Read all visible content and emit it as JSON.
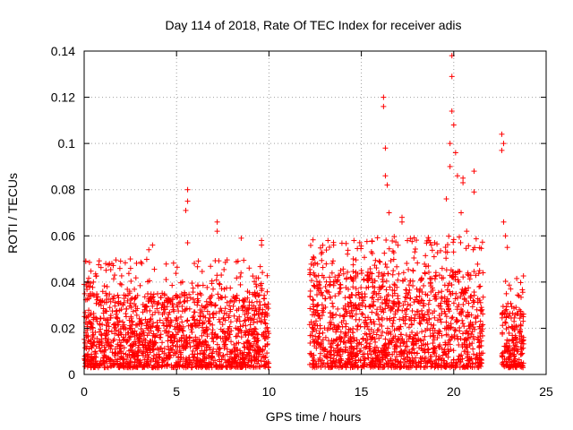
{
  "chart_data": {
    "type": "scatter",
    "title": "Day 114 of 2018, Rate Of TEC Index for receiver adis",
    "xlabel": "GPS time / hours",
    "ylabel": "ROTI / TECUs",
    "xlim": [
      0,
      25
    ],
    "ylim": [
      0,
      0.14
    ],
    "x_ticks": [
      0,
      5,
      10,
      15,
      20,
      25
    ],
    "x_tick_labels": [
      "0",
      "5",
      "10",
      "15",
      "20",
      "25"
    ],
    "y_ticks": [
      0,
      0.02,
      0.04,
      0.06,
      0.08,
      0.1,
      0.12,
      0.14
    ],
    "y_tick_labels": [
      "0",
      "0.02",
      "0.04",
      "0.06",
      "0.08",
      "0.1",
      "0.12",
      "0.14"
    ],
    "grid": true,
    "marker": "+",
    "color": "#ff0000",
    "series": [
      {
        "name": "ROTI",
        "bulk_segments": [
          {
            "x_range": [
              0.0,
              10.0
            ],
            "y_range": [
              0.003,
              0.035
            ],
            "density": "dense"
          },
          {
            "x_range": [
              12.2,
              21.6
            ],
            "y_range": [
              0.003,
              0.045
            ],
            "density": "dense"
          },
          {
            "x_range": [
              22.6,
              23.8
            ],
            "y_range": [
              0.003,
              0.03
            ],
            "density": "dense"
          }
        ],
        "peaks": [
          {
            "x": 0.0,
            "y": 0.039
          },
          {
            "x": 0.5,
            "y": 0.04
          },
          {
            "x": 1.5,
            "y": 0.048
          },
          {
            "x": 2.5,
            "y": 0.05
          },
          {
            "x": 3.5,
            "y": 0.054
          },
          {
            "x": 3.7,
            "y": 0.056
          },
          {
            "x": 5.6,
            "y": 0.08
          },
          {
            "x": 5.6,
            "y": 0.075
          },
          {
            "x": 5.5,
            "y": 0.071
          },
          {
            "x": 5.6,
            "y": 0.057
          },
          {
            "x": 7.2,
            "y": 0.066
          },
          {
            "x": 7.2,
            "y": 0.062
          },
          {
            "x": 8.5,
            "y": 0.059
          },
          {
            "x": 9.6,
            "y": 0.058
          },
          {
            "x": 9.6,
            "y": 0.056
          },
          {
            "x": 13.5,
            "y": 0.056
          },
          {
            "x": 14.6,
            "y": 0.058
          },
          {
            "x": 16.2,
            "y": 0.12
          },
          {
            "x": 16.2,
            "y": 0.116
          },
          {
            "x": 16.3,
            "y": 0.098
          },
          {
            "x": 16.3,
            "y": 0.086
          },
          {
            "x": 16.4,
            "y": 0.082
          },
          {
            "x": 16.5,
            "y": 0.07
          },
          {
            "x": 17.2,
            "y": 0.068
          },
          {
            "x": 17.2,
            "y": 0.066
          },
          {
            "x": 19.9,
            "y": 0.138
          },
          {
            "x": 19.9,
            "y": 0.129
          },
          {
            "x": 19.9,
            "y": 0.114
          },
          {
            "x": 20.0,
            "y": 0.108
          },
          {
            "x": 19.8,
            "y": 0.1
          },
          {
            "x": 20.1,
            "y": 0.096
          },
          {
            "x": 19.8,
            "y": 0.09
          },
          {
            "x": 20.2,
            "y": 0.086
          },
          {
            "x": 20.5,
            "y": 0.085
          },
          {
            "x": 20.5,
            "y": 0.083
          },
          {
            "x": 21.1,
            "y": 0.088
          },
          {
            "x": 21.1,
            "y": 0.079
          },
          {
            "x": 19.6,
            "y": 0.076
          },
          {
            "x": 20.4,
            "y": 0.07
          },
          {
            "x": 20.7,
            "y": 0.062
          },
          {
            "x": 22.6,
            "y": 0.104
          },
          {
            "x": 22.7,
            "y": 0.1
          },
          {
            "x": 22.6,
            "y": 0.097
          },
          {
            "x": 22.7,
            "y": 0.066
          },
          {
            "x": 22.8,
            "y": 0.06
          },
          {
            "x": 22.9,
            "y": 0.055
          }
        ]
      }
    ]
  }
}
